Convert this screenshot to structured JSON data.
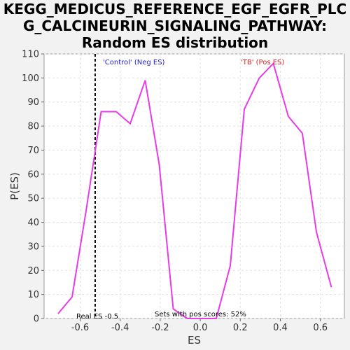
{
  "chart_data": {
    "type": "line",
    "title_lines": [
      "KEGG_MEDICUS_REFERENCE_EGF_EGFR_PLC",
      "G_CALCINEURIN_SIGNALING_PATHWAY:",
      "Random ES distribution"
    ],
    "xlabel": "ES",
    "ylabel": "P(ES)",
    "xlim": [
      -0.78,
      0.72
    ],
    "ylim": [
      0,
      110
    ],
    "xticks": [
      -0.6,
      -0.4,
      -0.2,
      0.0,
      0.2,
      0.4,
      0.6
    ],
    "xtick_labels": [
      "-0.6",
      "-0.4",
      "-0.2",
      "0.0",
      "0.2",
      "0.4",
      "0.6"
    ],
    "yticks": [
      0,
      10,
      20,
      30,
      40,
      50,
      60,
      70,
      80,
      90,
      100,
      110
    ],
    "ytick_labels": [
      "0",
      "10",
      "20",
      "30",
      "40",
      "50",
      "60",
      "70",
      "80",
      "90",
      "100",
      "110"
    ],
    "grid": true,
    "series_color": "#e83be8",
    "series": [
      {
        "x": [
          -0.71,
          -0.64,
          -0.57,
          -0.495,
          -0.42,
          -0.35,
          -0.275,
          -0.205,
          -0.135,
          -0.065,
          0.01,
          0.08,
          0.15,
          0.22,
          0.295,
          0.365,
          0.44,
          0.51,
          0.58,
          0.655
        ],
        "y": [
          2,
          9,
          45,
          86,
          86,
          81,
          99,
          64,
          4,
          0,
          0,
          0,
          22,
          87,
          100,
          106,
          84,
          77,
          36,
          13
        ]
      }
    ],
    "real_es": -0.525,
    "annotations": {
      "neg_label": "'Control' (Neg ES)",
      "neg_color": "#2222cc",
      "pos_label": "'TB' (Pos ES)",
      "pos_color": "#dd2222",
      "real_es_label": "Real ES -0.5",
      "pos_scores_label": "Sets with pos scores: 52%"
    }
  }
}
